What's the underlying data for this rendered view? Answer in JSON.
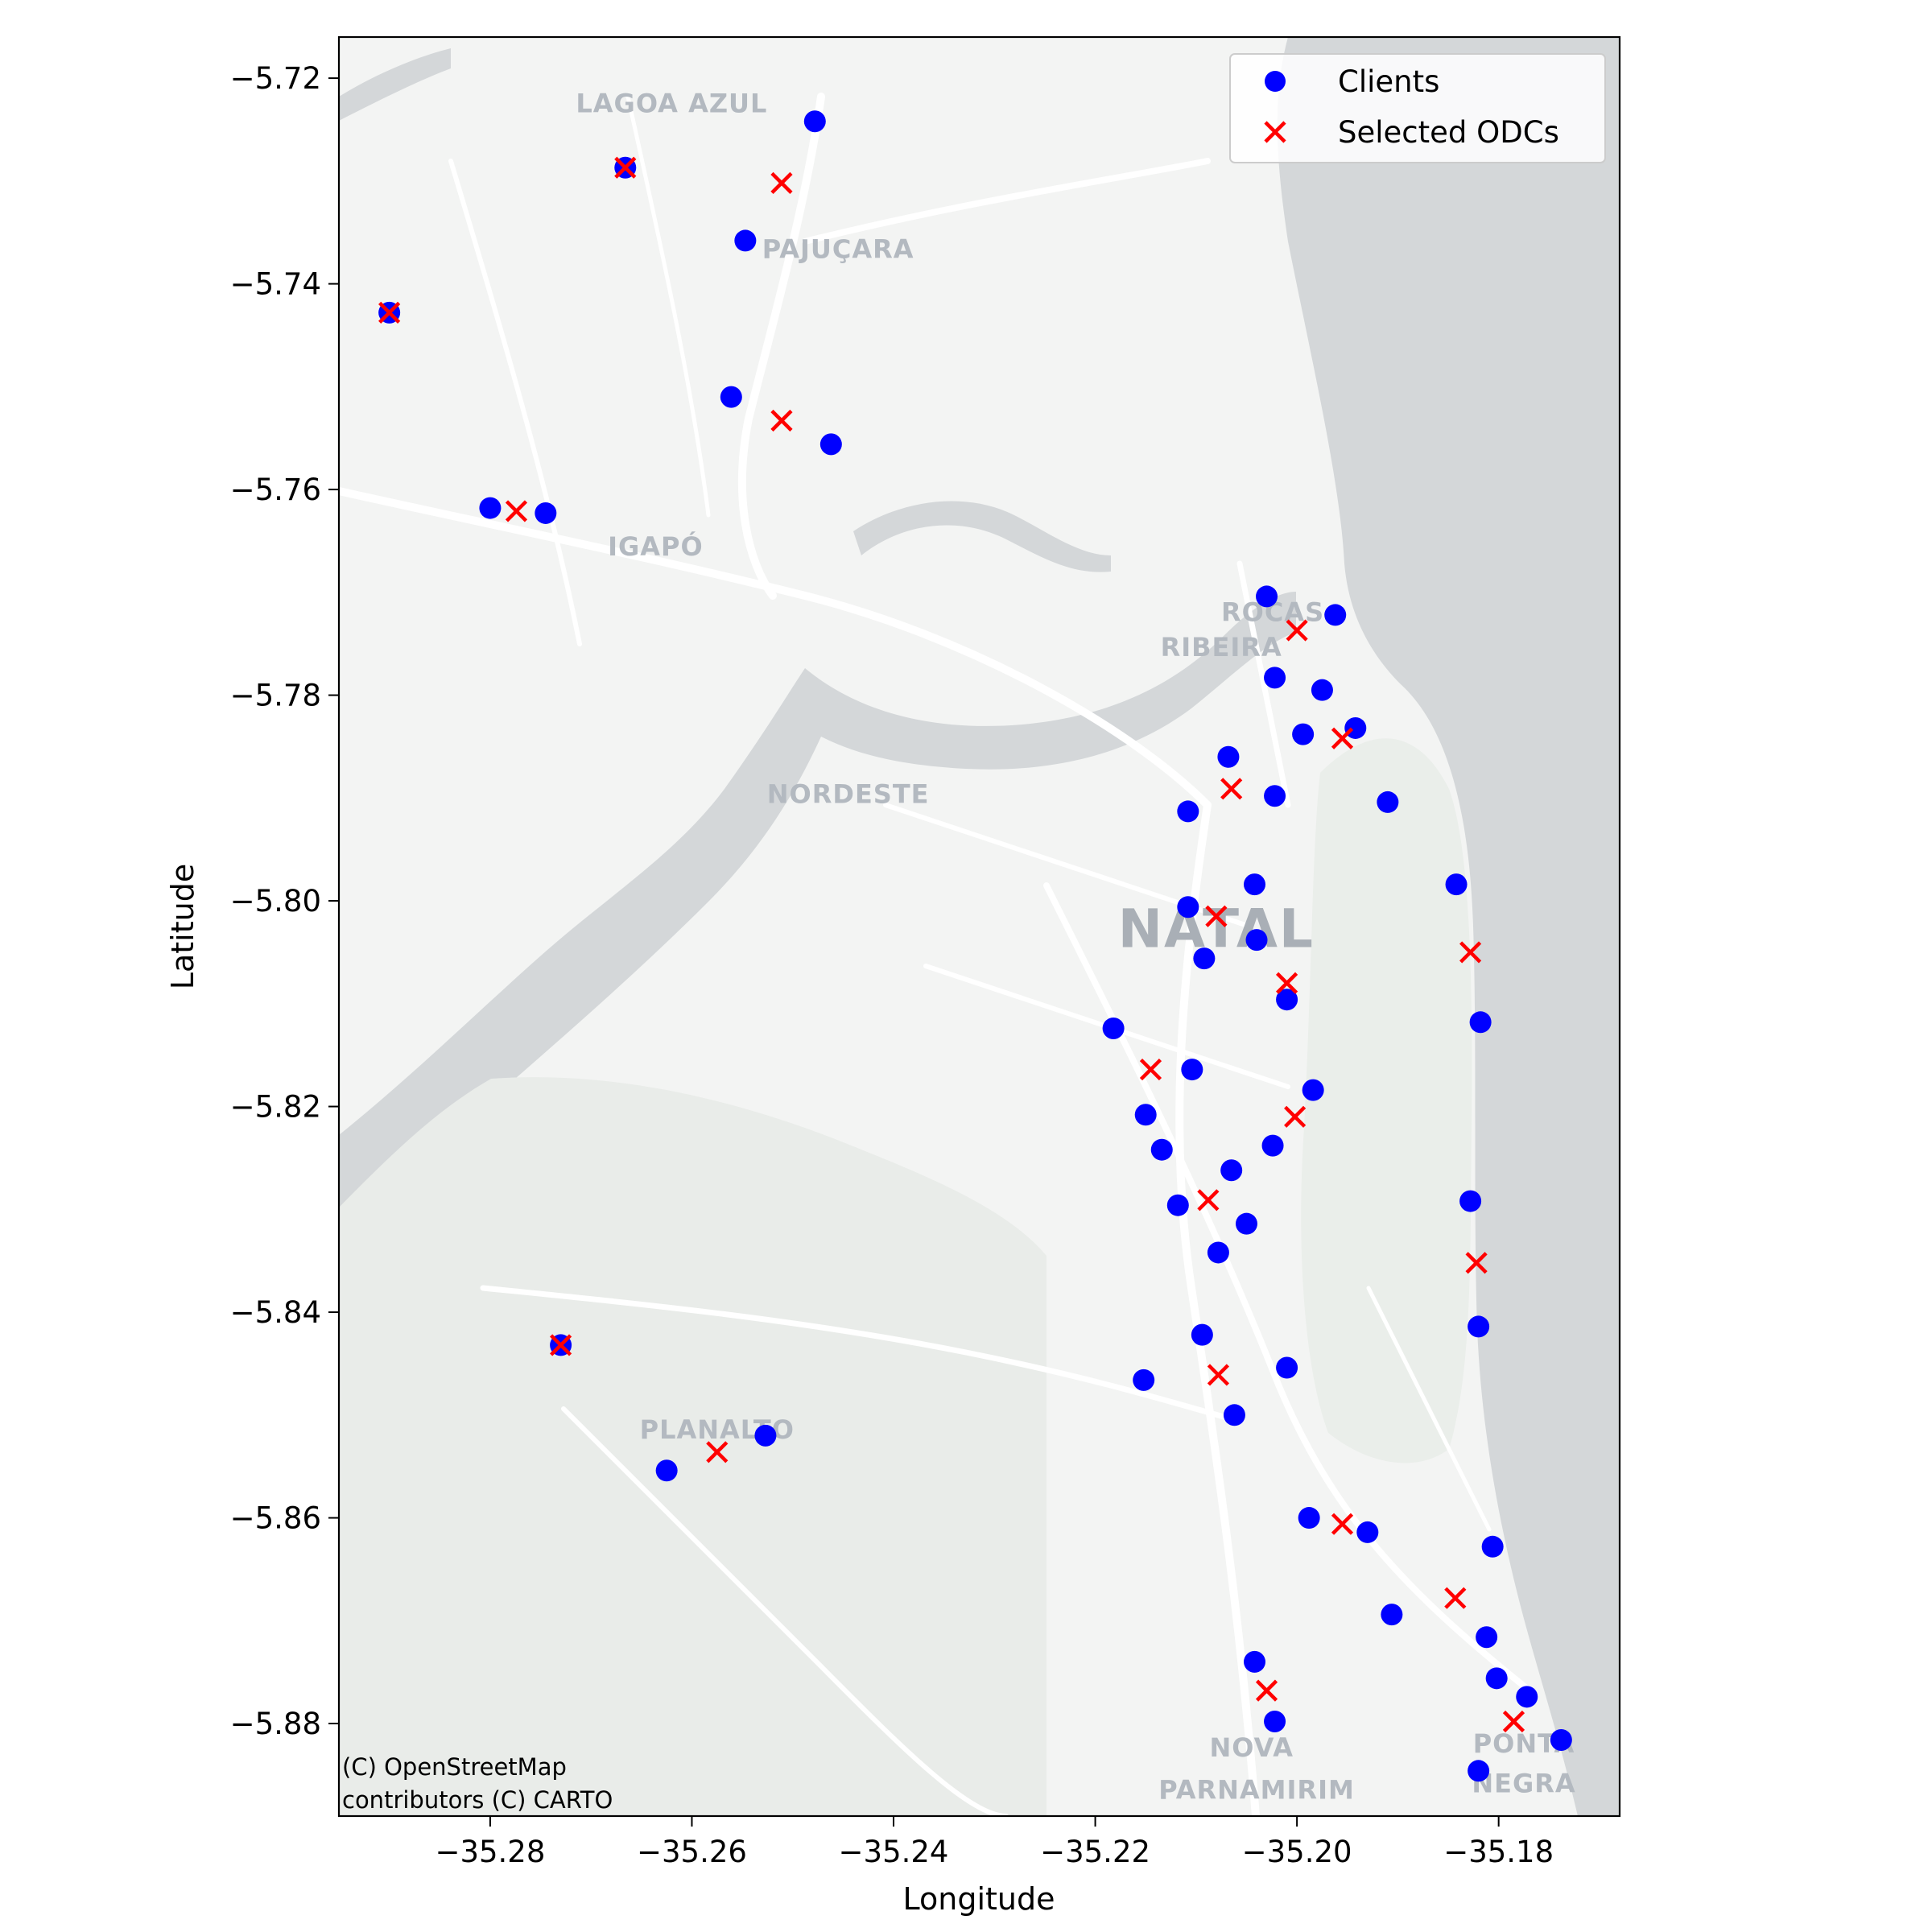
{
  "chart_data": {
    "type": "scatter",
    "xlabel": "Longitude",
    "ylabel": "Latitude",
    "xlim": [
      -35.295,
      -35.168
    ],
    "ylim": [
      -5.889,
      -5.716
    ],
    "xticks": [
      -35.28,
      -35.26,
      -35.24,
      -35.22,
      -35.2,
      -35.18
    ],
    "xtick_labels": [
      "−35.28",
      "−35.26",
      "−35.24",
      "−35.22",
      "−35.20",
      "−35.18"
    ],
    "yticks": [
      -5.72,
      -5.74,
      -5.76,
      -5.78,
      -5.8,
      -5.82,
      -5.84,
      -5.86,
      -5.88
    ],
    "ytick_labels": [
      "−5.72",
      "−5.74",
      "−5.76",
      "−5.78",
      "−5.80",
      "−5.82",
      "−5.84",
      "−5.86",
      "−5.88"
    ],
    "legend_position": "top-right",
    "grid": false,
    "basemap": {
      "attribution": [
        "(C) OpenStreetMap",
        "contributors (C) CARTO"
      ],
      "place_labels": [
        {
          "text": "LAGOA AZUL",
          "lon": -35.262,
          "lat": -5.7233
        },
        {
          "text": "PAJUÇARA",
          "lon": -35.2455,
          "lat": -5.7375
        },
        {
          "text": "IGAPÓ",
          "lon": -35.2636,
          "lat": -5.7664
        },
        {
          "text": "NORDESTE",
          "lon": -35.2445,
          "lat": -5.7905
        },
        {
          "text": "ROCAS",
          "lon": -35.2024,
          "lat": -5.7728
        },
        {
          "text": "RIBEIRA",
          "lon": -35.2075,
          "lat": -5.7762
        },
        {
          "text": "NATAL",
          "lon": -35.208,
          "lat": -5.8045
        },
        {
          "text": "PLANALTO",
          "lon": -35.2575,
          "lat": -5.8523
        },
        {
          "text": "NOVA",
          "lon": -35.2045,
          "lat": -5.8832
        },
        {
          "text": "PARNAMIRIM",
          "lon": -35.204,
          "lat": -5.8873
        },
        {
          "text": "PONTA",
          "lon": -35.1775,
          "lat": -5.8828
        },
        {
          "text": "NEGRA",
          "lon": -35.1775,
          "lat": -5.8867
        }
      ]
    },
    "series": [
      {
        "name": "Clients",
        "marker": "circle",
        "color": "#0000ff",
        "points": [
          [
            -35.2478,
            -5.7242
          ],
          [
            -35.2666,
            -5.7287
          ],
          [
            -35.2547,
            -5.7358
          ],
          [
            -35.29,
            -5.7428
          ],
          [
            -35.2561,
            -5.751
          ],
          [
            -35.2462,
            -5.7556
          ],
          [
            -35.28,
            -5.7618
          ],
          [
            -35.2745,
            -5.7623
          ],
          [
            -35.273,
            -5.8432
          ],
          [
            -35.2527,
            -5.852
          ],
          [
            -35.2625,
            -5.8554
          ],
          [
            -35.203,
            -5.7704
          ],
          [
            -35.1962,
            -5.7722
          ],
          [
            -35.2022,
            -5.7783
          ],
          [
            -35.1975,
            -5.7795
          ],
          [
            -35.1994,
            -5.7838
          ],
          [
            -35.1942,
            -5.7832
          ],
          [
            -35.2068,
            -5.786
          ],
          [
            -35.2022,
            -5.7898
          ],
          [
            -35.2108,
            -5.7913
          ],
          [
            -35.191,
            -5.7904
          ],
          [
            -35.2042,
            -5.7984
          ],
          [
            -35.1842,
            -5.7984
          ],
          [
            -35.2108,
            -5.8006
          ],
          [
            -35.204,
            -5.8038
          ],
          [
            -35.2092,
            -5.8056
          ],
          [
            -35.201,
            -5.8096
          ],
          [
            -35.2182,
            -5.8124
          ],
          [
            -35.1818,
            -5.8118
          ],
          [
            -35.2104,
            -5.8164
          ],
          [
            -35.1984,
            -5.8184
          ],
          [
            -35.215,
            -5.8208
          ],
          [
            -35.2134,
            -5.8242
          ],
          [
            -35.2024,
            -5.8238
          ],
          [
            -35.2065,
            -5.8262
          ],
          [
            -35.2118,
            -5.8296
          ],
          [
            -35.1828,
            -5.8292
          ],
          [
            -35.205,
            -5.8314
          ],
          [
            -35.2078,
            -5.8342
          ],
          [
            -35.182,
            -5.8414
          ],
          [
            -35.2094,
            -5.8422
          ],
          [
            -35.201,
            -5.8454
          ],
          [
            -35.2152,
            -5.8466
          ],
          [
            -35.2062,
            -5.85
          ],
          [
            -35.1988,
            -5.86
          ],
          [
            -35.193,
            -5.8614
          ],
          [
            -35.1806,
            -5.8628
          ],
          [
            -35.1906,
            -5.8694
          ],
          [
            -35.1812,
            -5.8716
          ],
          [
            -35.2042,
            -5.874
          ],
          [
            -35.1802,
            -5.8756
          ],
          [
            -35.1772,
            -5.8774
          ],
          [
            -35.2022,
            -5.8798
          ],
          [
            -35.1738,
            -5.8816
          ],
          [
            -35.182,
            -5.8846
          ]
        ]
      },
      {
        "name": "Selected ODCs",
        "marker": "x",
        "color": "#ff0000",
        "points": [
          [
            -35.2666,
            -5.7287
          ],
          [
            -35.2511,
            -5.7302
          ],
          [
            -35.29,
            -5.7428
          ],
          [
            -35.2511,
            -5.7533
          ],
          [
            -35.2774,
            -5.7621
          ],
          [
            -35.273,
            -5.8432
          ],
          [
            -35.2575,
            -5.8536
          ],
          [
            -35.2,
            -5.7737
          ],
          [
            -35.1955,
            -5.7842
          ],
          [
            -35.2065,
            -5.7891
          ],
          [
            -35.208,
            -5.8015
          ],
          [
            -35.1828,
            -5.805
          ],
          [
            -35.201,
            -5.808
          ],
          [
            -35.2145,
            -5.8164
          ],
          [
            -35.2002,
            -5.821
          ],
          [
            -35.2088,
            -5.8291
          ],
          [
            -35.1822,
            -5.8352
          ],
          [
            -35.2078,
            -5.8461
          ],
          [
            -35.1955,
            -5.8606
          ],
          [
            -35.1843,
            -5.8678
          ],
          [
            -35.203,
            -5.8768
          ],
          [
            -35.1785,
            -5.8798
          ]
        ]
      }
    ]
  }
}
